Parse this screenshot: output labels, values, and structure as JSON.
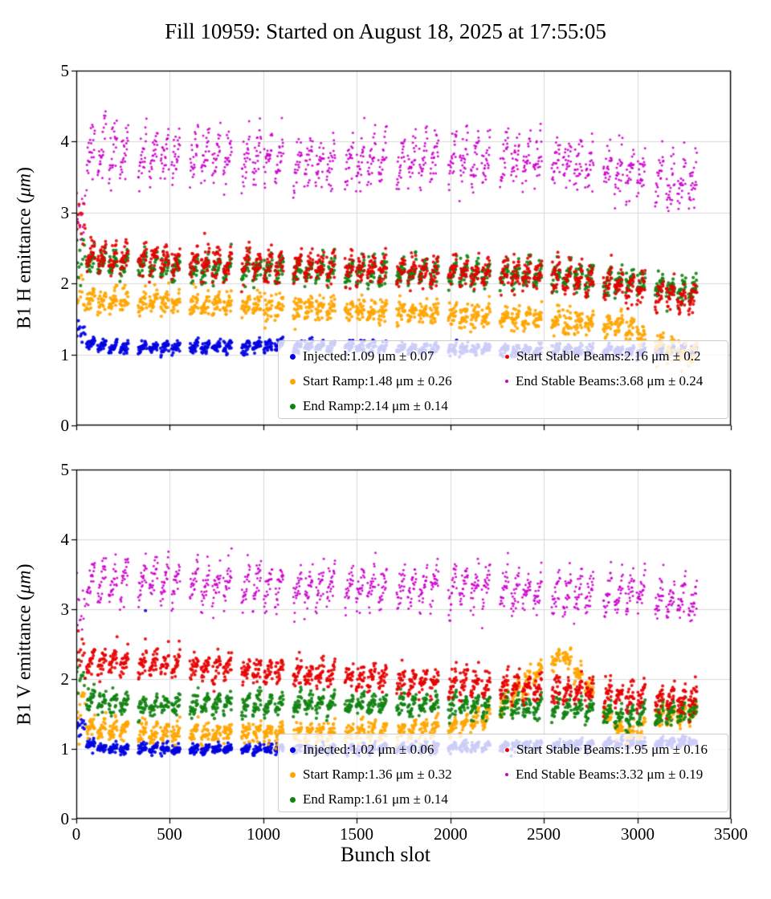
{
  "title": "Fill 10959: Started on August 18, 2025 at 17:55:05",
  "xlabel": "Bunch slot",
  "chart_data": [
    {
      "type": "scatter",
      "plot_name": "B1 H emittance",
      "ylabel_prefix": "B1 H emittance (",
      "ylabel_unit": "μm",
      "ylabel_suffix": ")",
      "xlim": [
        0,
        3500
      ],
      "ylim": [
        0,
        5
      ],
      "xticks": [
        0,
        500,
        1000,
        1500,
        2000,
        2500,
        3000,
        3500
      ],
      "yticks": [
        0,
        1,
        2,
        3,
        4,
        5
      ],
      "grid": true,
      "legend_position": "lower right",
      "legend_columns": 2,
      "bunch_pattern": {
        "initial_bunches": 12,
        "initial_start": 3,
        "initial_spacing": 4,
        "first_slot": 55,
        "num_trains": 12,
        "subtrains_per_train": 4,
        "bunches_per_subtrain": 24,
        "bunch_spacing_slots": 1.9,
        "subtrain_gap_slots": 14,
        "train_gap_slots": 52
      },
      "series": [
        {
          "name": "Injected",
          "label": "Injected:1.09 μm ± 0.07",
          "mean": 1.09,
          "std": 0.07,
          "color": "#0000e0",
          "size": 2.1,
          "legend_dot": 7,
          "noise": 0.04,
          "saw": 0.04,
          "init_offset": 0.1,
          "trend": [
            [
              0,
              1.22
            ],
            [
              150,
              1.1
            ],
            [
              1200,
              1.12
            ],
            [
              2200,
              1.07
            ],
            [
              3250,
              1.04
            ]
          ]
        },
        {
          "name": "Start Ramp",
          "label": "Start Ramp:1.48 μm ± 0.26",
          "mean": 1.48,
          "std": 0.26,
          "color": "#ffa500",
          "size": 2.1,
          "legend_dot": 7,
          "noise": 0.08,
          "saw": 0.08,
          "init_offset": 0.08,
          "trend": [
            [
              0,
              1.78
            ],
            [
              800,
              1.7
            ],
            [
              1600,
              1.6
            ],
            [
              2400,
              1.52
            ],
            [
              2900,
              1.42
            ],
            [
              3000,
              1.3
            ],
            [
              3250,
              0.98
            ]
          ]
        },
        {
          "name": "End Ramp",
          "label": "End Ramp:2.14 μm ± 0.14",
          "mean": 2.14,
          "std": 0.14,
          "color": "#128312",
          "size": 2.1,
          "legend_dot": 7,
          "noise": 0.08,
          "saw": 0.12,
          "init_offset": 0.1,
          "trend": [
            [
              0,
              2.3
            ],
            [
              600,
              2.22
            ],
            [
              1600,
              2.16
            ],
            [
              2400,
              2.12
            ],
            [
              2900,
              2.05
            ],
            [
              3250,
              1.9
            ]
          ]
        },
        {
          "name": "Start Stable Beams",
          "label": "Start Stable Beams:2.16 μm ± 0.2",
          "mean": 2.16,
          "std": 0.2,
          "color": "#e60000",
          "size": 2.0,
          "legend_dot": 5,
          "noise": 0.1,
          "saw": 0.12,
          "init_offset": 0.35,
          "trend": [
            [
              0,
              2.4
            ],
            [
              600,
              2.3
            ],
            [
              1600,
              2.2
            ],
            [
              2400,
              2.12
            ],
            [
              2900,
              2.02
            ],
            [
              3100,
              1.88
            ],
            [
              3250,
              1.8
            ]
          ]
        },
        {
          "name": "End Stable Beams",
          "label": "End Stable Beams:3.68 μm ± 0.24",
          "mean": 3.68,
          "std": 0.24,
          "color": "#cc00cc",
          "size": 1.5,
          "legend_dot": 4,
          "noise": 0.16,
          "saw": 0.24,
          "init_offset": -0.7,
          "trend": [
            [
              0,
              3.88
            ],
            [
              600,
              3.8
            ],
            [
              1400,
              3.72
            ],
            [
              2200,
              3.75
            ],
            [
              2700,
              3.72
            ],
            [
              2950,
              3.55
            ],
            [
              3250,
              3.42
            ]
          ]
        }
      ]
    },
    {
      "type": "scatter",
      "plot_name": "B1 V emittance",
      "ylabel_prefix": "B1 V emittance (",
      "ylabel_unit": "μm",
      "ylabel_suffix": ")",
      "xlim": [
        0,
        3500
      ],
      "ylim": [
        0,
        5
      ],
      "xticks": [
        0,
        500,
        1000,
        1500,
        2000,
        2500,
        3000,
        3500
      ],
      "yticks": [
        0,
        1,
        2,
        3,
        4,
        5
      ],
      "grid": true,
      "legend_position": "lower right",
      "legend_columns": 2,
      "bunch_pattern": {
        "initial_bunches": 12,
        "initial_start": 3,
        "initial_spacing": 4,
        "first_slot": 55,
        "num_trains": 12,
        "subtrains_per_train": 4,
        "bunches_per_subtrain": 24,
        "bunch_spacing_slots": 1.9,
        "subtrain_gap_slots": 14,
        "train_gap_slots": 52
      },
      "series": [
        {
          "name": "Injected",
          "label": "Injected:1.02 μm ± 0.06",
          "mean": 1.02,
          "std": 0.06,
          "color": "#0000e0",
          "size": 2.1,
          "legend_dot": 7,
          "noise": 0.035,
          "saw": 0.03,
          "init_offset": 0.2,
          "trend": [
            [
              0,
              1.15
            ],
            [
              150,
              1.0
            ],
            [
              1500,
              1.0
            ],
            [
              2500,
              1.05
            ],
            [
              3250,
              1.1
            ]
          ],
          "outliers": [
            [
              370,
              2.98
            ]
          ]
        },
        {
          "name": "Start Ramp",
          "label": "Start Ramp:1.36 μm ± 0.32",
          "mean": 1.36,
          "std": 0.32,
          "color": "#ffa500",
          "size": 2.1,
          "legend_dot": 7,
          "noise": 0.07,
          "saw": 0.08,
          "init_offset": 0.35,
          "trend": [
            [
              0,
              1.32
            ],
            [
              400,
              1.24
            ],
            [
              1200,
              1.22
            ],
            [
              2000,
              1.28
            ],
            [
              2250,
              1.55
            ],
            [
              2450,
              2.05
            ],
            [
              2600,
              2.35
            ],
            [
              2700,
              2.05
            ],
            [
              2850,
              1.45
            ],
            [
              2950,
              1.18
            ],
            [
              3100,
              1.42
            ],
            [
              3250,
              1.5
            ]
          ]
        },
        {
          "name": "End Ramp",
          "label": "End Ramp:1.61 μm ± 0.14",
          "mean": 1.61,
          "std": 0.14,
          "color": "#128312",
          "size": 2.1,
          "legend_dot": 7,
          "noise": 0.07,
          "saw": 0.1,
          "init_offset": 0.35,
          "trend": [
            [
              0,
              1.72
            ],
            [
              300,
              1.62
            ],
            [
              1200,
              1.66
            ],
            [
              2200,
              1.62
            ],
            [
              2700,
              1.58
            ],
            [
              2950,
              1.45
            ],
            [
              3100,
              1.5
            ],
            [
              3250,
              1.52
            ]
          ]
        },
        {
          "name": "Start Stable Beams",
          "label": "Start Stable Beams:1.95 μm ± 0.16",
          "mean": 1.95,
          "std": 0.16,
          "color": "#e60000",
          "size": 2.0,
          "legend_dot": 5,
          "noise": 0.09,
          "saw": 0.12,
          "init_offset": 0.15,
          "trend": [
            [
              0,
              2.25
            ],
            [
              400,
              2.22
            ],
            [
              1000,
              2.12
            ],
            [
              1600,
              2.02
            ],
            [
              2200,
              1.92
            ],
            [
              2700,
              1.82
            ],
            [
              3000,
              1.75
            ],
            [
              3250,
              1.7
            ]
          ]
        },
        {
          "name": "End Stable Beams",
          "label": "End Stable Beams:3.32 μm ± 0.19",
          "mean": 3.32,
          "std": 0.19,
          "color": "#cc00cc",
          "size": 1.5,
          "legend_dot": 4,
          "noise": 0.12,
          "saw": 0.22,
          "init_offset": -0.35,
          "trend": [
            [
              0,
              3.38
            ],
            [
              400,
              3.42
            ],
            [
              1200,
              3.32
            ],
            [
              2000,
              3.32
            ],
            [
              2600,
              3.22
            ],
            [
              3000,
              3.22
            ],
            [
              3250,
              3.1
            ]
          ]
        }
      ]
    }
  ]
}
